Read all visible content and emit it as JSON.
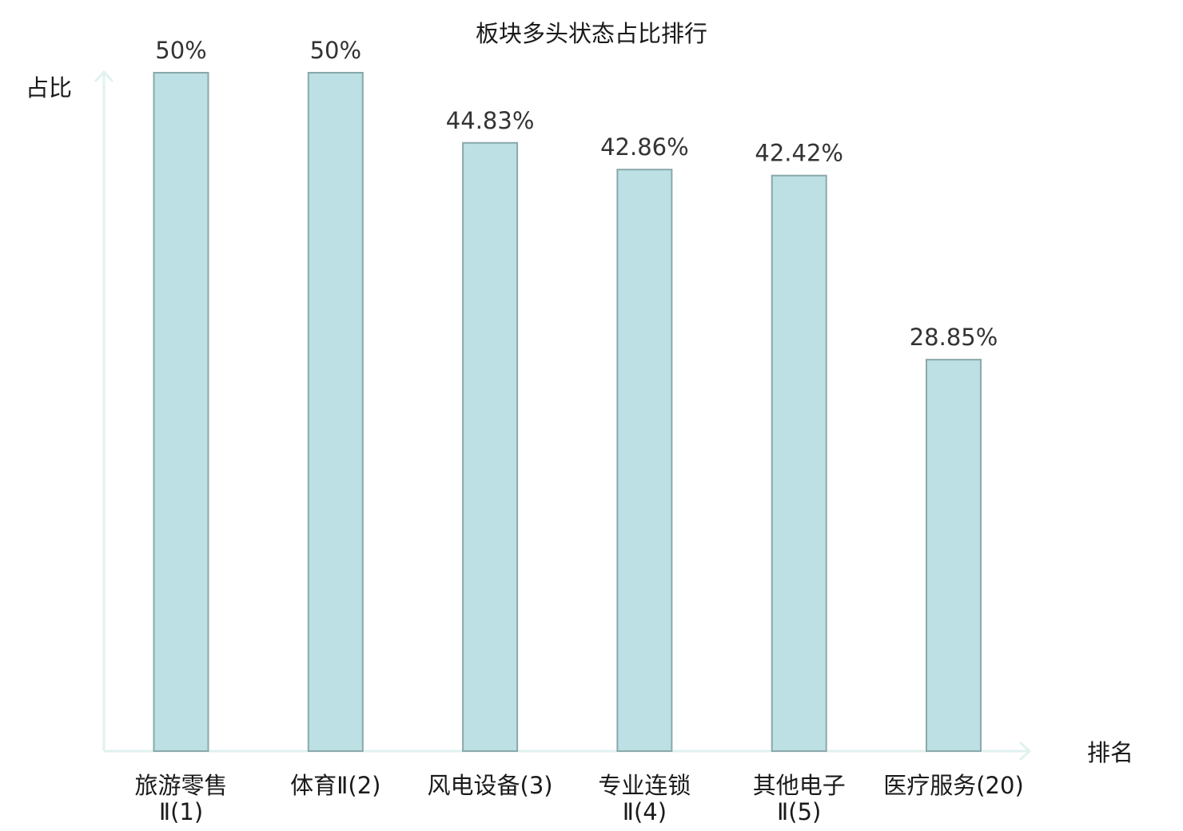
{
  "chart_data": {
    "type": "bar",
    "title": "板块多头状态占比排行",
    "ylabel": "占比",
    "xlabel": "排名",
    "ylim": [
      0,
      50
    ],
    "grid": false,
    "legend": "none",
    "categories": [
      [
        "旅游零售",
        "Ⅱ(1)"
      ],
      [
        "体育Ⅱ(2)"
      ],
      [
        "风电设备(3)"
      ],
      [
        "专业连锁",
        "Ⅱ(4)"
      ],
      [
        "其他电子",
        "Ⅱ(5)"
      ],
      [
        "医疗服务(20)"
      ]
    ],
    "values": [
      50,
      50,
      44.83,
      42.86,
      42.42,
      28.85
    ],
    "value_labels": [
      "50%",
      "50%",
      "44.83%",
      "42.86%",
      "42.42%",
      "28.85%"
    ],
    "highlight_index": 5,
    "colors": {
      "bar_fill": "#bce0e3",
      "bar_stroke": "#8aa8aa",
      "axis": "#e0f2ef",
      "label": "#1a1a1a",
      "value": "#333333",
      "highlight": "#d9141b"
    }
  }
}
